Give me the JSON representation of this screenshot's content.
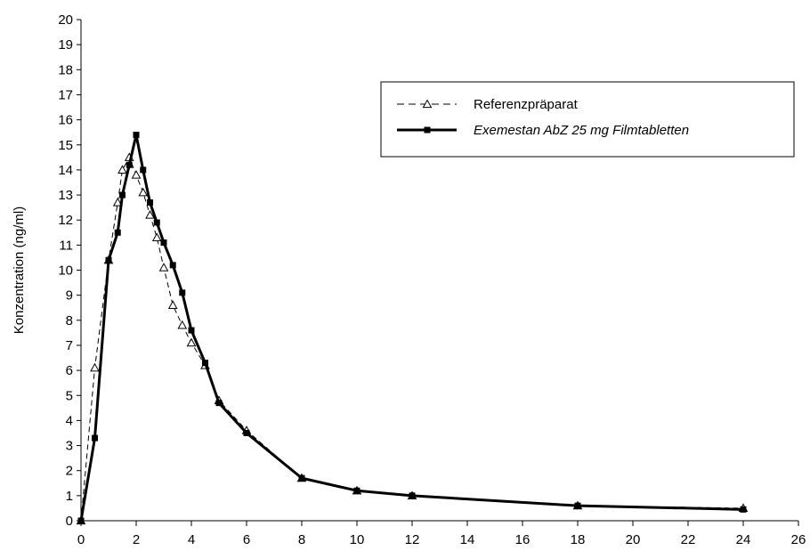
{
  "chart_data": {
    "type": "line",
    "title": "",
    "xlabel": "",
    "ylabel": "Konzentration (ng/ml)",
    "xlim": [
      0,
      26
    ],
    "ylim": [
      0,
      20
    ],
    "x_ticks": [
      0,
      2,
      4,
      6,
      8,
      10,
      12,
      14,
      16,
      18,
      20,
      22,
      24,
      26
    ],
    "y_ticks": [
      0,
      1,
      2,
      3,
      4,
      5,
      6,
      7,
      8,
      9,
      10,
      11,
      12,
      13,
      14,
      15,
      16,
      17,
      18,
      19,
      20
    ],
    "grid": false,
    "legend_position": "top-right",
    "series": [
      {
        "name": "Referenzpräparat",
        "style": "dashed",
        "marker": "open-triangle",
        "color": "#000000",
        "x": [
          0,
          0.5,
          1,
          1.33,
          1.5,
          1.75,
          2,
          2.25,
          2.5,
          2.75,
          3,
          3.33,
          3.67,
          4,
          4.5,
          5,
          6,
          8,
          10,
          12,
          18,
          24
        ],
        "y": [
          0,
          6.1,
          10.4,
          12.7,
          14.0,
          14.5,
          13.8,
          13.1,
          12.2,
          11.3,
          10.1,
          8.6,
          7.8,
          7.1,
          6.2,
          4.8,
          3.6,
          1.7,
          1.2,
          1.0,
          0.6,
          0.5
        ]
      },
      {
        "name": "Exemestan AbZ 25 mg Filmtabletten",
        "style": "solid-bold",
        "marker": "filled-square",
        "color": "#000000",
        "x": [
          0,
          0.5,
          1,
          1.33,
          1.5,
          1.75,
          2,
          2.25,
          2.5,
          2.75,
          3,
          3.33,
          3.67,
          4,
          4.5,
          5,
          6,
          8,
          10,
          12,
          18,
          24
        ],
        "y": [
          0,
          3.3,
          10.4,
          11.5,
          13.0,
          14.2,
          15.4,
          14.0,
          12.7,
          11.9,
          11.1,
          10.2,
          9.1,
          7.6,
          6.3,
          4.7,
          3.5,
          1.7,
          1.2,
          1.0,
          0.6,
          0.45
        ]
      }
    ]
  }
}
